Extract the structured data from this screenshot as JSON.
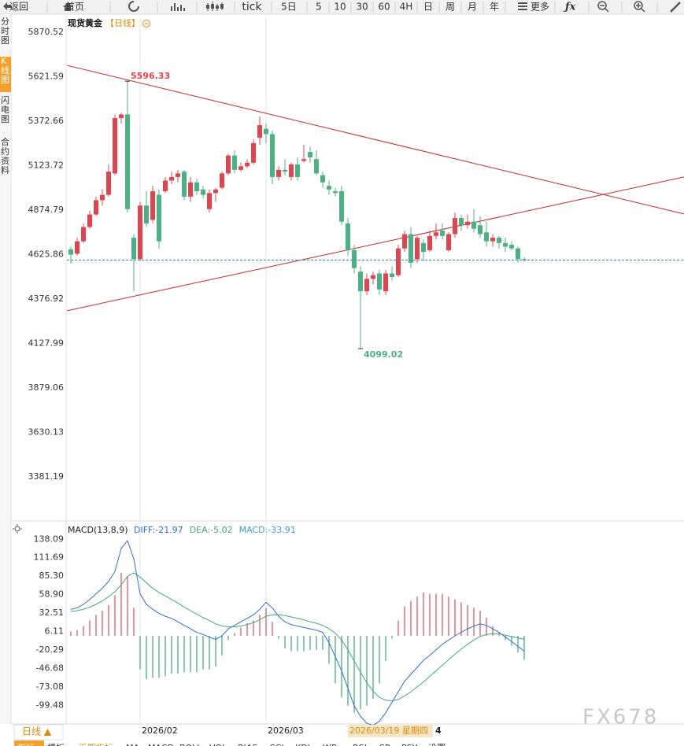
{
  "ui": {
    "toolbar": [
      "返回",
      "首页",
      "tick",
      "5日",
      "5",
      "10",
      "30",
      "60",
      "4H",
      "日",
      "周",
      "月",
      "年",
      "更多"
    ],
    "tabs": [
      "分时图",
      "K线图",
      "闪电图",
      "合约资料"
    ],
    "period": "日线 ▲",
    "bottom_tabs": [
      "指标",
      "模板",
      "近期指标",
      "MA",
      "MACD",
      "BOLL",
      "VOL",
      "BIAS",
      "CCI",
      "KDJ",
      "WR",
      "RSI",
      "SR",
      "PSY",
      "设置"
    ],
    "cursor_label": "2026/03/19 星期四",
    "axis_fragment": "4",
    "watermark": "FX678"
  },
  "chart_data": [
    {
      "type": "candlestick",
      "title": "现货黄金",
      "subtitle": "【日线】",
      "up_color": "#e0454f",
      "down_color": "#4bb083",
      "categories": [
        null,
        null,
        null,
        null,
        null,
        null,
        null,
        null,
        null,
        null,
        null,
        "2026/02",
        null,
        null,
        null,
        null,
        null,
        null,
        null,
        null,
        null,
        null,
        null,
        null,
        null,
        null,
        null,
        null,
        null,
        null,
        null,
        "2026/03",
        null,
        null,
        null,
        null,
        null,
        null,
        null,
        null,
        null,
        null,
        null,
        null,
        null,
        null,
        null,
        null,
        null,
        null,
        null,
        null,
        null,
        null,
        null,
        null,
        null,
        null,
        null,
        null,
        null,
        null,
        null,
        null,
        null,
        null,
        null,
        null,
        null,
        null,
        null,
        null,
        null
      ],
      "open": [
        4655,
        4630,
        4700,
        4780,
        4850,
        4930,
        4960,
        5080,
        5390,
        5410,
        4720,
        4600,
        4900,
        4820,
        4960,
        4980,
        5040,
        5060,
        5090,
        4950,
        5030,
        4990,
        4880,
        4970,
        5000,
        5080,
        5180,
        5100,
        5120,
        5140,
        5280,
        5330,
        5300,
        5060,
        5100,
        5060,
        5130,
        5150,
        5200,
        5160,
        5070,
        5010,
        4980,
        4980,
        4800,
        4650,
        4530,
        4420,
        4490,
        4520,
        4420,
        4520,
        4510,
        4660,
        4740,
        4600,
        4690,
        4650,
        4730,
        4760,
        4650,
        4740,
        4830,
        4790,
        4810,
        4790,
        4750,
        4700,
        4720,
        4690,
        4680,
        4660,
        4600
      ],
      "high": [
        4670,
        4720,
        4800,
        4870,
        4950,
        4990,
        5130,
        5410,
        5420,
        5596.33,
        4740,
        4920,
        4980,
        5010,
        4990,
        5060,
        5090,
        5100,
        5100,
        5060,
        5050,
        5010,
        4990,
        5000,
        5090,
        5190,
        5210,
        5140,
        5160,
        5270,
        5400,
        5360,
        5320,
        5120,
        5160,
        5140,
        5170,
        5240,
        5230,
        5210,
        5090,
        5040,
        5000,
        5010,
        4830,
        4680,
        4560,
        4520,
        4530,
        4540,
        4540,
        4560,
        4680,
        4760,
        4780,
        4730,
        4710,
        4760,
        4800,
        4800,
        4750,
        4860,
        4850,
        4850,
        4880,
        4840,
        4810,
        4740,
        4730,
        4720,
        4700,
        4670,
        4610
      ],
      "low": [
        4575,
        4620,
        4690,
        4770,
        4840,
        4900,
        4950,
        5070,
        5360,
        4860,
        4420,
        4590,
        4780,
        4800,
        4660,
        4970,
        5020,
        5030,
        4930,
        4920,
        4960,
        4940,
        4860,
        4920,
        4990,
        5070,
        5080,
        5090,
        5110,
        5130,
        5240,
        5250,
        5020,
        5040,
        5070,
        5040,
        5040,
        5140,
        5140,
        5070,
        5000,
        4960,
        4950,
        4790,
        4620,
        4520,
        4099.02,
        4400,
        4460,
        4400,
        4400,
        4480,
        4500,
        4640,
        4550,
        4580,
        4590,
        4640,
        4710,
        4710,
        4640,
        4720,
        4760,
        4770,
        4750,
        4720,
        4670,
        4670,
        4660,
        4640,
        4650,
        4580,
        4585
      ],
      "close": [
        4625,
        4700,
        4780,
        4850,
        4930,
        4960,
        5090,
        5390,
        5410,
        4880,
        4600,
        4900,
        4800,
        4980,
        4700,
        5040,
        5060,
        5080,
        4950,
        5030,
        4980,
        4960,
        4970,
        4990,
        5080,
        5180,
        5100,
        5120,
        5140,
        5250,
        5350,
        5300,
        5060,
        5100,
        5090,
        5130,
        5060,
        5160,
        5170,
        5080,
        5030,
        4990,
        4970,
        4810,
        4650,
        4550,
        4420,
        4490,
        4510,
        4430,
        4520,
        4500,
        4660,
        4740,
        4580,
        4720,
        4640,
        4730,
        4750,
        4730,
        4740,
        4830,
        4790,
        4810,
        4770,
        4740,
        4700,
        4720,
        4690,
        4670,
        4660,
        4600,
        4595
      ],
      "ylim": [
        3143,
        5954
      ],
      "yticks": [
        5870.52,
        5621.59,
        5372.66,
        5123.72,
        4874.79,
        4625.86,
        4376.92,
        4127.99,
        3879.06,
        3630.13,
        3381.19
      ],
      "trendlines": [
        {
          "color": "#c8282c",
          "start": 5685,
          "end": 4853
        },
        {
          "color": "#c8282c",
          "start": 4311,
          "end": 5060
        }
      ],
      "last_price_color": "#2a8bd0"
    },
    {
      "type": "macd",
      "title": "MACD(13,8,9)",
      "series": [
        {
          "legend": "DIFF:-21.97",
          "color": "#2c6ed8",
          "values": [
            38,
            40,
            45,
            52,
            60,
            68,
            78,
            92,
            125,
            136,
            110,
            60,
            45,
            38,
            32,
            28,
            25,
            20,
            15,
            10,
            5,
            2,
            -2,
            -5,
            0,
            10,
            15,
            20,
            25,
            30,
            38,
            48,
            40,
            28,
            20,
            16,
            14,
            12,
            10,
            8,
            5,
            -10,
            -30,
            -50,
            -75,
            -100,
            -115,
            -125,
            -128,
            -122,
            -110,
            -95,
            -80,
            -65,
            -55,
            -45,
            -35,
            -28,
            -20,
            -12,
            -6,
            0,
            5,
            10,
            14,
            17,
            15,
            10,
            5,
            -2,
            -8,
            -15,
            -21.97
          ]
        },
        {
          "legend": "DEA:-5.02",
          "color": "#3faa80",
          "values": [
            35,
            36,
            38,
            41,
            45,
            50,
            56,
            63,
            73,
            85,
            90,
            84,
            76,
            68,
            62,
            57,
            52,
            47,
            41,
            36,
            31,
            26,
            22,
            17,
            14,
            13,
            13,
            14,
            16,
            19,
            23,
            28,
            30,
            30,
            29,
            27,
            25,
            23,
            20,
            18,
            15,
            10,
            4,
            -6,
            -20,
            -36,
            -52,
            -67,
            -79,
            -88,
            -92,
            -93,
            -91,
            -86,
            -80,
            -73,
            -66,
            -58,
            -50,
            -42,
            -34,
            -26,
            -19,
            -12,
            -6,
            -1,
            2,
            3,
            3,
            1,
            -1,
            -3,
            -5.02
          ]
        }
      ],
      "histogram": {
        "legend": "MACD:-33.91",
        "color": "#3aa0d0",
        "up_color": "#d0505a",
        "down_color": "#3aa57a",
        "values": [
          6,
          8,
          14,
          22,
          30,
          36,
          44,
          58,
          90,
          85,
          40,
          -48,
          -62,
          -60,
          -60,
          -58,
          -54,
          -54,
          -52,
          -52,
          -52,
          -48,
          -48,
          -44,
          -28,
          -6,
          4,
          12,
          18,
          22,
          30,
          40,
          20,
          -4,
          -18,
          -22,
          -22,
          -22,
          -20,
          -20,
          -20,
          -40,
          -68,
          -88,
          -100,
          -110,
          -105,
          -100,
          -90,
          -68,
          -36,
          -4,
          22,
          42,
          50,
          56,
          62,
          60,
          60,
          60,
          56,
          52,
          48,
          44,
          40,
          36,
          26,
          14,
          4,
          -6,
          -14,
          -24,
          -33.91
        ]
      },
      "ylim": [
        -126,
        144
      ],
      "yticks": [
        138.09,
        111.69,
        {
          "value": 85.3,
          "label": "85.30"
        },
        {
          "value": 58.9,
          "label": "58.90"
        },
        32.51,
        6.11,
        -20.29,
        -46.68,
        -73.08,
        -99.48
      ]
    }
  ]
}
